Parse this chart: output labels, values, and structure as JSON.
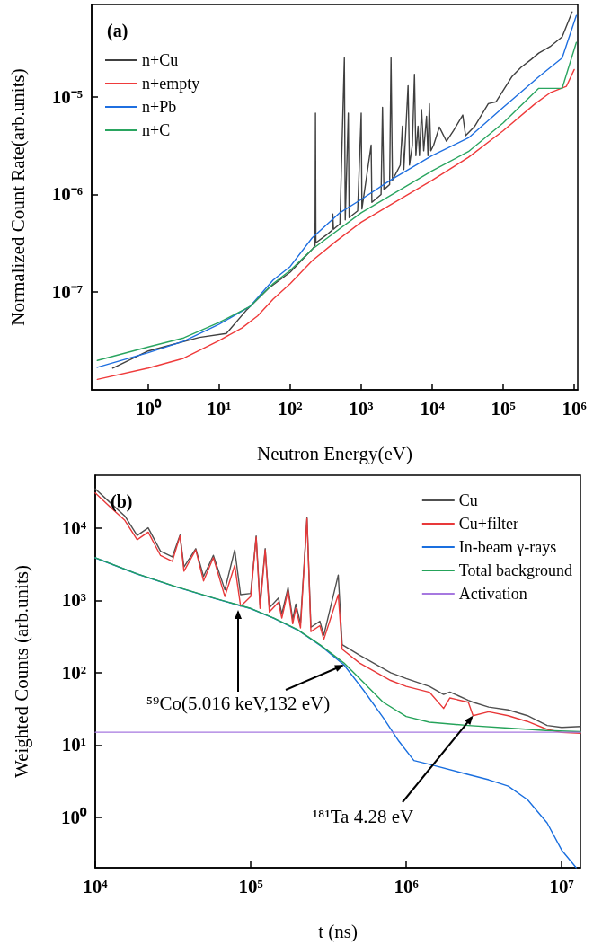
{
  "chart_data": [
    {
      "type": "line",
      "title": "(a)",
      "xlabel": "Neutron Energy(eV)",
      "ylabel": "Normalized Count Rate(arb.units)",
      "log": "xy",
      "legend": "top left",
      "marker": "none",
      "xlim": [
        0.16,
        1120000
      ],
      "ylim": [
        1e-08,
        8.8e-05
      ],
      "xticks": [
        {
          "value": 1,
          "label": "10⁰"
        },
        {
          "value": 10,
          "label": "10¹"
        },
        {
          "value": 100,
          "label": "10²"
        },
        {
          "value": 1000,
          "label": "10³"
        },
        {
          "value": 10000,
          "label": "10⁴"
        },
        {
          "value": 100000,
          "label": "10⁵"
        },
        {
          "value": 1000000,
          "label": "10⁶"
        }
      ],
      "yticks": [
        {
          "value": 1e-07,
          "label": "10⁻⁷"
        },
        {
          "value": 1e-06,
          "label": "10⁻⁶"
        },
        {
          "value": 1e-05,
          "label": "10⁻⁵"
        }
      ],
      "series": [
        {
          "name": "n+Cu",
          "color": "#404040",
          "x": [
            0.316,
            1,
            5.25,
            12.6,
            24,
            50,
            100,
            200,
            224,
            227,
            230,
            316,
            389,
            398,
            407,
            501,
            579,
            596,
            658,
            676,
            891,
            1000,
            1023,
            1380,
            1413,
            1905,
            1995,
            2089,
            2512,
            2630,
            2754,
            3548,
            3802,
            3981,
            4571,
            4786,
            5248,
            5623,
            5888,
            6310,
            6607,
            7079,
            7586,
            8318,
            8710,
            9120,
            9550,
            10470,
            12590,
            15850,
            19950,
            26920,
            29510,
            39810,
            61660,
            79430,
            131800,
            177800,
            245500,
            316200,
            467700,
            676100,
            933300
          ],
          "values": [
            1.67e-08,
            2.5e-08,
            3.44e-08,
            3.77e-08,
            6.5e-08,
            1.1e-07,
            1.6e-07,
            2.7e-07,
            3e-07,
            6.8e-06,
            3.2e-07,
            3.8e-07,
            4.3e-07,
            6.3e-07,
            4.4e-07,
            5e-07,
            2.5e-05,
            5.5e-07,
            6.8e-06,
            5.8e-07,
            6.8e-07,
            6.8e-06,
            7.1e-07,
            3.2e-06,
            8.3e-07,
            1e-06,
            7.8e-06,
            1.12e-06,
            1.26e-06,
            2.5e-05,
            1.4e-06,
            2e-06,
            5e-06,
            1.8e-06,
            1.3e-05,
            2e-06,
            3.2e-06,
            1.7e-05,
            2.5e-06,
            5e-06,
            2.5e-06,
            7.4e-06,
            2.8e-06,
            6.3e-06,
            2.5e-06,
            8.5e-06,
            2.8e-06,
            3.2e-06,
            4.9e-06,
            3.5e-06,
            4.5e-06,
            6.5e-06,
            4e-06,
            5e-06,
            8.5e-06,
            8.9e-06,
            1.6e-05,
            2e-05,
            2.4e-05,
            2.8e-05,
            3.3e-05,
            4.1e-05,
            7.4e-05
          ]
        },
        {
          "name": "n+empty",
          "color": "#ef3b3b",
          "x": [
            0.192,
            1,
            3.13,
            10,
            20.9,
            34.7,
            57.5,
            100,
            204,
            437,
            1000,
            2570,
            10000,
            32400,
            100000,
            282000,
            468000,
            776000,
            1000000
          ],
          "values": [
            1.28e-08,
            1.67e-08,
            2.1e-08,
            3.2e-08,
            4.3e-08,
            5.7e-08,
            8.5e-08,
            1.22e-07,
            2.1e-07,
            3.3e-07,
            5.2e-07,
            7.8e-07,
            1.4e-06,
            2.4e-06,
            4.5e-06,
            8.5e-06,
            1.11e-05,
            1.28e-05,
            1.9e-05
          ]
        },
        {
          "name": "n+Pb",
          "color": "#1f6fe0",
          "x": [
            0.192,
            1,
            3.16,
            10,
            26.9,
            57.5,
            100,
            204,
            501,
            1000,
            2570,
            10000,
            32400,
            100000,
            316000,
            676000,
            1070000
          ],
          "values": [
            1.7e-08,
            2.4e-08,
            3.15e-08,
            4.7e-08,
            7.1e-08,
            1.33e-07,
            1.83e-07,
            3.6e-07,
            6.5e-07,
            8.9e-07,
            1.4e-06,
            2.5e-06,
            3.8e-06,
            7.8e-06,
            1.6e-05,
            2.5e-05,
            6.8e-05
          ]
        },
        {
          "name": "n+C",
          "color": "#2aa560",
          "x": [
            0.192,
            1,
            3.16,
            10,
            26.9,
            57.5,
            100,
            204,
            1000,
            10000,
            32400,
            100000,
            316000,
            676000,
            1070000
          ],
          "values": [
            2e-08,
            2.75e-08,
            3.4e-08,
            4.9e-08,
            7.1e-08,
            1.22e-07,
            1.67e-07,
            2.75e-07,
            6.5e-07,
            1.75e-06,
            2.75e-06,
            5.4e-06,
            1.22e-05,
            1.22e-05,
            3.6e-05
          ]
        }
      ]
    },
    {
      "type": "line",
      "title": "(b)",
      "xlabel": "t (ns)",
      "ylabel": "Weighted Counts (arb.units)",
      "log": "xy",
      "legend": "top right",
      "marker": "none",
      "xlim": [
        10000,
        13200000
      ],
      "ylim": [
        0.2,
        54000
      ],
      "xticks": [
        {
          "value": 10000,
          "label": "10⁴"
        },
        {
          "value": 100000,
          "label": "10⁵"
        },
        {
          "value": 1000000,
          "label": "10⁶"
        },
        {
          "value": 10000000,
          "label": "10⁷"
        }
      ],
      "yticks": [
        {
          "value": 1,
          "label": "10⁰"
        },
        {
          "value": 10,
          "label": "10¹"
        },
        {
          "value": 100,
          "label": "10²"
        },
        {
          "value": 1000,
          "label": "10³"
        },
        {
          "value": 10000,
          "label": "10⁴"
        }
      ],
      "annotations": [
        {
          "text": "⁵⁹Co(5.016 keV,132 eV)",
          "x": 398000,
          "y": 128
        },
        {
          "text": "¹⁸¹Ta 4.28 eV",
          "x": 2690000,
          "y": 25.4
        }
      ],
      "series": [
        {
          "name": "Cu",
          "color": "#505050",
          "x": [
            10000,
            12400,
            15500,
            18600,
            21900,
            26300,
            31300,
            35100,
            37200,
            44300,
            49700,
            57500,
            68200,
            78900,
            86100,
            100000,
            108400,
            114800,
            123900,
            131800,
            150700,
            158500,
            173800,
            186200,
            195000,
            208900,
            230100,
            243800,
            278600,
            295100,
            365600,
            387300,
            501200,
            794300,
            1000000,
            1410000,
            1740000,
            1910000,
            2510000,
            2690000,
            3390000,
            4530000,
            6030000,
            8070000,
            10000000,
            13200000
          ],
          "values": [
            35000,
            22800,
            14700,
            7900,
            10100,
            4800,
            4000,
            8000,
            2900,
            5200,
            2140,
            4200,
            1400,
            5000,
            1200,
            1250,
            7800,
            890,
            5200,
            790,
            1080,
            650,
            1500,
            545,
            890,
            480,
            14000,
            425,
            515,
            330,
            2240,
            245,
            175,
            100,
            83,
            64.6,
            50,
            54,
            41.5,
            39,
            33.4,
            30.6,
            25.4,
            18.6,
            17.5,
            18
          ]
        },
        {
          "name": "Cu+filter",
          "color": "#e8393a",
          "x": [
            10000,
            12400,
            15500,
            18600,
            21900,
            26300,
            31300,
            35100,
            37200,
            44300,
            49700,
            57500,
            68200,
            78900,
            86100,
            100000,
            108400,
            114800,
            123900,
            131800,
            150700,
            158500,
            173800,
            186200,
            195000,
            208900,
            230100,
            243800,
            278600,
            295100,
            365600,
            387300,
            501200,
            794300,
            1000000,
            1410000,
            1740000,
            1910000,
            2510000,
            2690000,
            3390000,
            4530000,
            6030000,
            8070000,
            10000000,
            13200000
          ],
          "values": [
            30600,
            19800,
            12800,
            6900,
            8800,
            4170,
            3470,
            7800,
            2540,
            5000,
            1860,
            3900,
            1130,
            3060,
            830,
            1130,
            7500,
            775,
            5000,
            690,
            940,
            570,
            1365,
            475,
            775,
            417,
            13600,
            370,
            447,
            288,
            1200,
            211,
            136,
            78,
            64.6,
            53.7,
            32,
            44.7,
            39,
            25.4,
            28.8,
            25.4,
            21.1,
            16.4,
            14.9,
            14.5
          ]
        },
        {
          "name": "In-beam γ-rays",
          "color": "#1a6fdf",
          "x": [
            10000,
            18600,
            33100,
            58900,
            100000,
            141000,
            200000,
            282000,
            398000,
            532000,
            711000,
            896000,
            1120000,
            1410000,
            2510000,
            3390000,
            4530000,
            6030000,
            8070000,
            10000000,
            12400000
          ],
          "values": [
            3880,
            2320,
            1540,
            1060,
            770,
            565,
            390,
            236,
            128,
            57,
            23.9,
            11.3,
            6.1,
            5.4,
            3.9,
            3.3,
            2.7,
            1.75,
            0.83,
            0.35,
            0.2
          ]
        },
        {
          "name": "Total background",
          "color": "#25a35a",
          "x": [
            10000,
            18600,
            33100,
            58900,
            100000,
            141000,
            200000,
            282000,
            398000,
            532000,
            711000,
            1000000,
            1410000,
            2510000,
            4530000,
            7940000,
            13200000
          ],
          "values": [
            3900,
            2330,
            1550,
            1065,
            775,
            570,
            394,
            239,
            136,
            73,
            39,
            24.8,
            20.6,
            18.6,
            17.1,
            15.8,
            15.3
          ]
        },
        {
          "name": "Activation",
          "color": "#a678e0",
          "x": [
            10000,
            13200000
          ],
          "values": [
            15,
            15
          ]
        }
      ]
    }
  ]
}
